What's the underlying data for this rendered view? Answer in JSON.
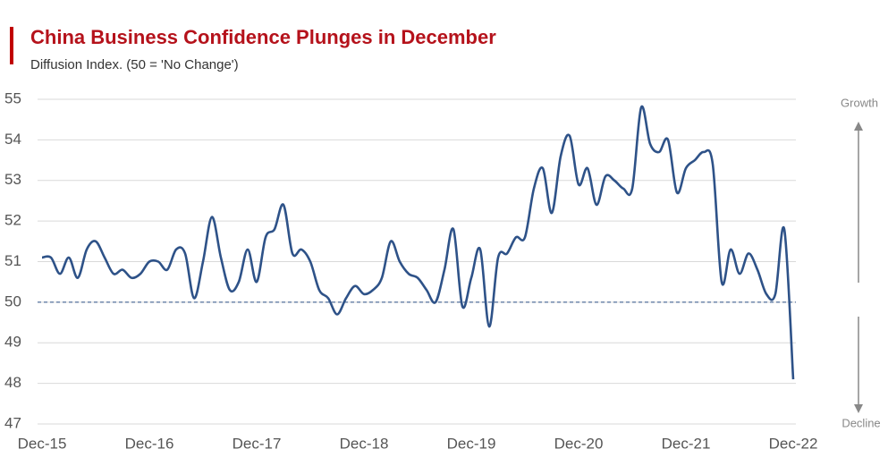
{
  "chart_data": {
    "type": "line",
    "title": "China Business Confidence Plunges in December",
    "subtitle": "Diffusion Index. (50 = 'No Change')",
    "annotations": [
      "Growth",
      "Decline"
    ],
    "categories": [
      "Dec-15",
      null,
      null,
      null,
      null,
      null,
      null,
      null,
      null,
      null,
      null,
      null,
      "Dec-16",
      null,
      null,
      null,
      null,
      null,
      null,
      null,
      null,
      null,
      null,
      null,
      "Dec-17",
      null,
      null,
      null,
      null,
      null,
      null,
      null,
      null,
      null,
      null,
      null,
      "Dec-18",
      null,
      null,
      null,
      null,
      null,
      null,
      null,
      null,
      null,
      null,
      null,
      "Dec-19",
      null,
      null,
      null,
      null,
      null,
      null,
      null,
      null,
      null,
      null,
      null,
      "Dec-20",
      null,
      null,
      null,
      null,
      null,
      null,
      null,
      null,
      null,
      null,
      null,
      "Dec-21",
      null,
      null,
      null,
      null,
      null,
      null,
      null,
      null,
      null,
      null,
      null,
      "Dec-22"
    ],
    "series": [
      {
        "name": "Business Confidence",
        "color": "#2e5288",
        "values": [
          51.1,
          51.1,
          50.7,
          51.1,
          50.6,
          51.3,
          51.5,
          51.1,
          50.7,
          50.8,
          50.6,
          50.7,
          51.0,
          51.0,
          50.8,
          51.3,
          51.2,
          50.1,
          51.0,
          52.1,
          51.1,
          50.3,
          50.5,
          51.3,
          50.5,
          51.6,
          51.8,
          52.4,
          51.2,
          51.3,
          51.0,
          50.3,
          50.1,
          49.7,
          50.1,
          50.4,
          50.2,
          50.3,
          50.6,
          51.5,
          51.0,
          50.7,
          50.6,
          50.3,
          50.0,
          50.8,
          51.8,
          49.9,
          50.6,
          51.3,
          49.4,
          51.1,
          51.2,
          51.6,
          51.6,
          52.8,
          53.3,
          52.2,
          53.6,
          54.1,
          52.9,
          53.3,
          52.4,
          53.1,
          53.0,
          52.8,
          52.8,
          54.8,
          53.9,
          53.7,
          54.0,
          52.7,
          53.3,
          53.5,
          53.7,
          53.4,
          50.5,
          51.3,
          50.7,
          51.2,
          50.8,
          50.2,
          50.2,
          51.8,
          48.1
        ]
      }
    ],
    "reference_line": 50,
    "ylim": [
      47,
      55
    ],
    "yticks": [
      47,
      48,
      49,
      50,
      51,
      52,
      53,
      54,
      55
    ],
    "grid": true
  }
}
